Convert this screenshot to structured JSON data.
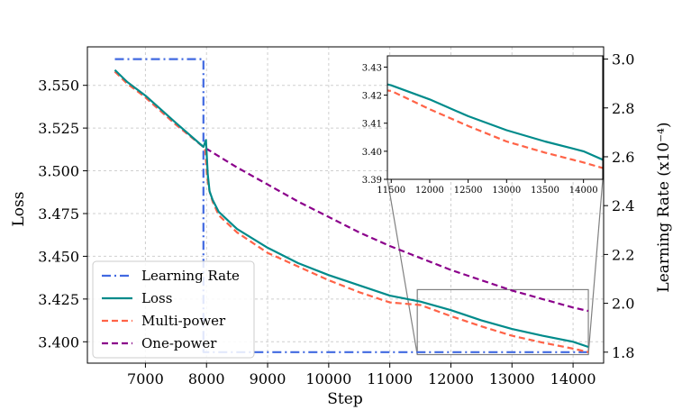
{
  "chart_data": {
    "type": "line",
    "title": "",
    "xlabel": "Step",
    "ylabel": "Loss",
    "ylabel_right": "Learning Rate (x10⁻⁴)",
    "xlim": [
      6050,
      14500
    ],
    "ylim": [
      3.3875,
      3.5725
    ],
    "ylim_right": [
      1.755,
      3.05
    ],
    "x_ticks": [
      7000,
      8000,
      9000,
      10000,
      11000,
      12000,
      13000,
      14000
    ],
    "y_ticks": [
      3.4,
      3.425,
      3.45,
      3.475,
      3.5,
      3.525,
      3.55
    ],
    "y_ticks_right": [
      1.8,
      2.0,
      2.2,
      2.4,
      2.6,
      2.8,
      3.0
    ],
    "x_tick_labels": [
      "7000",
      "8000",
      "9000",
      "10000",
      "11000",
      "12000",
      "13000",
      "14000"
    ],
    "y_tick_labels": [
      "3.400",
      "3.425",
      "3.450",
      "3.475",
      "3.500",
      "3.525",
      "3.550"
    ],
    "y_tick_labels_right": [
      "1.8",
      "2.0",
      "2.2",
      "2.4",
      "2.6",
      "2.8",
      "3.0"
    ],
    "grid": true,
    "legend_position": "bottom-left",
    "series": [
      {
        "name": "Learning Rate",
        "axis": "right",
        "color": "#4169E1",
        "style": "dashdot",
        "x": [
          6500,
          7950,
          7950,
          14250
        ],
        "y": [
          3.0,
          3.0,
          1.8,
          1.8
        ]
      },
      {
        "name": "Loss",
        "axis": "left",
        "color": "#008B8B",
        "style": "solid",
        "x": [
          6500,
          6700,
          7000,
          7500,
          7950,
          7990,
          8020,
          8050,
          8100,
          8200,
          8500,
          9000,
          9500,
          10000,
          10500,
          11000,
          11500,
          12000,
          12500,
          13000,
          13500,
          14000,
          14250
        ],
        "y": [
          3.559,
          3.552,
          3.544,
          3.528,
          3.514,
          3.518,
          3.498,
          3.488,
          3.483,
          3.476,
          3.466,
          3.455,
          3.446,
          3.439,
          3.433,
          3.427,
          3.4235,
          3.4185,
          3.4125,
          3.4075,
          3.4035,
          3.4,
          3.397
        ]
      },
      {
        "name": "Multi-power",
        "axis": "left",
        "color": "#FF6347",
        "style": "dashed",
        "x": [
          6500,
          6700,
          7000,
          7500,
          7950,
          7980,
          8010,
          8050,
          8100,
          8200,
          8500,
          9000,
          9500,
          10000,
          10500,
          11000,
          11500,
          12000,
          12500,
          13000,
          13500,
          14000,
          14250
        ],
        "y": [
          3.558,
          3.551,
          3.543,
          3.527,
          3.514,
          3.512,
          3.496,
          3.488,
          3.482,
          3.474,
          3.464,
          3.452,
          3.444,
          3.436,
          3.429,
          3.423,
          3.4215,
          3.415,
          3.409,
          3.4035,
          3.3995,
          3.396,
          3.394
        ]
      },
      {
        "name": "One-power",
        "axis": "left",
        "color": "#8B008B",
        "style": "dashed",
        "x": [
          6500,
          7000,
          7500,
          7950,
          8500,
          9000,
          9500,
          10000,
          10500,
          11000,
          11500,
          12000,
          12500,
          13000,
          13500,
          14000,
          14250
        ],
        "y": [
          3.558,
          3.543,
          3.527,
          3.514,
          3.502,
          3.492,
          3.482,
          3.473,
          3.464,
          3.456,
          3.449,
          3.442,
          3.436,
          3.43,
          3.425,
          3.42,
          3.418
        ]
      }
    ],
    "inset": {
      "xlim": [
        11450,
        14250
      ],
      "ylim": [
        3.39,
        3.434
      ],
      "x_ticks": [
        11500,
        12000,
        12500,
        13000,
        13500,
        14000
      ],
      "y_ticks": [
        3.39,
        3.4,
        3.41,
        3.42,
        3.43
      ],
      "x_tick_labels": [
        "11500",
        "12000",
        "12500",
        "13000",
        "13500",
        "14000"
      ],
      "y_tick_labels": [
        "3.39",
        "3.40",
        "3.41",
        "3.42",
        "3.43"
      ],
      "zoom_box": {
        "x": [
          11450,
          14250
        ],
        "y": [
          3.3925,
          3.4305
        ]
      }
    }
  }
}
